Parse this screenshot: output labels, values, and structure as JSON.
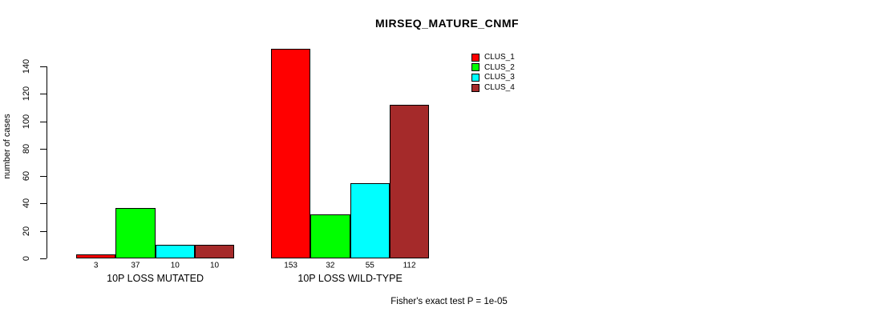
{
  "title": "MIRSEQ_MATURE_CNMF",
  "y_axis_label": "number of cases",
  "footnote": "Fisher's exact test P = 1e-05",
  "colors": {
    "clus_1": "#FF0000",
    "clus_2": "#00FF00",
    "clus_3": "#00FFFF",
    "clus_4": "#A52A2A",
    "axis": "#000000",
    "background": "#FFFFFF"
  },
  "legend": {
    "position": "top-right",
    "items": [
      {
        "label": "CLUS_1",
        "color": "#FF0000"
      },
      {
        "label": "CLUS_2",
        "color": "#00FF00"
      },
      {
        "label": "CLUS_3",
        "color": "#00FFFF"
      },
      {
        "label": "CLUS_4",
        "color": "#A52A2A"
      }
    ]
  },
  "chart_data": {
    "type": "bar",
    "title": "MIRSEQ_MATURE_CNMF",
    "xlabel": "",
    "ylabel": "number of cases",
    "ylim": [
      0,
      160
    ],
    "axis_max_tick": 140,
    "yticks": [
      0,
      20,
      40,
      60,
      80,
      100,
      120,
      140
    ],
    "grid": false,
    "legend_position": "top-right",
    "categories": [
      "10P LOSS MUTATED",
      "10P LOSS WILD-TYPE"
    ],
    "series": [
      {
        "name": "CLUS_1",
        "color": "#FF0000",
        "values": [
          3,
          153
        ]
      },
      {
        "name": "CLUS_2",
        "color": "#00FF00",
        "values": [
          37,
          32
        ]
      },
      {
        "name": "CLUS_3",
        "color": "#00FFFF",
        "values": [
          10,
          55
        ]
      },
      {
        "name": "CLUS_4",
        "color": "#A52A2A",
        "values": [
          10,
          112
        ]
      }
    ],
    "bar_value_labels": [
      [
        3,
        37,
        10,
        10
      ],
      [
        153,
        32,
        55,
        112
      ]
    ],
    "annotation": "Fisher's exact test P = 1e-05"
  }
}
